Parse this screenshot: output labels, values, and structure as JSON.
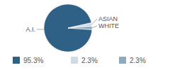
{
  "chart_data": {
    "type": "pie",
    "categories": [
      "A.I.",
      "ASIAN",
      "WHITE"
    ],
    "values": [
      95.3,
      2.3,
      2.3
    ],
    "value_labels": [
      "95.3%",
      "2.3%",
      "2.3%"
    ],
    "colors": [
      "#2f6186",
      "#cfdce6",
      "#8eaac0"
    ],
    "legend": "bottom"
  }
}
